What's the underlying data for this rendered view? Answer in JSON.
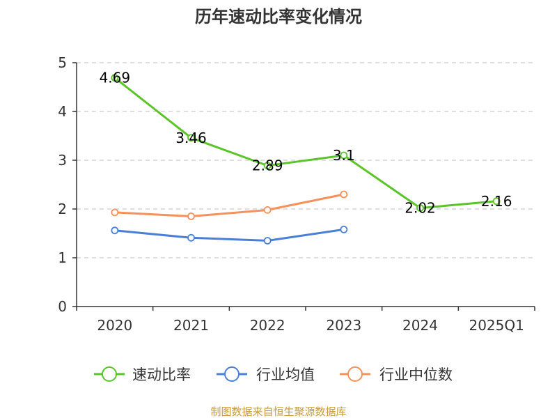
{
  "chart_data": {
    "type": "line",
    "title": "历年速动比率变化情况",
    "categories": [
      "2020",
      "2021",
      "2022",
      "2023",
      "2024",
      "2025Q1"
    ],
    "ylim": [
      0,
      5
    ],
    "yticks": [
      "0",
      "1",
      "2",
      "3",
      "4",
      "5"
    ],
    "grid": true,
    "legend_position": "bottom",
    "series": [
      {
        "name": "速动比率",
        "color": "#5cc42b",
        "values": [
          4.69,
          3.46,
          2.89,
          3.1,
          2.02,
          2.16
        ],
        "labels": [
          "4.69",
          "3.46",
          "2.89",
          "3.1",
          "2.02",
          "2.16"
        ]
      },
      {
        "name": "行业均值",
        "color": "#4a7fd6",
        "values": [
          1.56,
          1.41,
          1.35,
          1.58,
          null,
          null
        ]
      },
      {
        "name": "行业中位数",
        "color": "#f5915a",
        "values": [
          1.93,
          1.85,
          1.98,
          2.3,
          null,
          null
        ]
      }
    ]
  },
  "footer": {
    "source": "制图数据来自恒生聚源数据库"
  }
}
